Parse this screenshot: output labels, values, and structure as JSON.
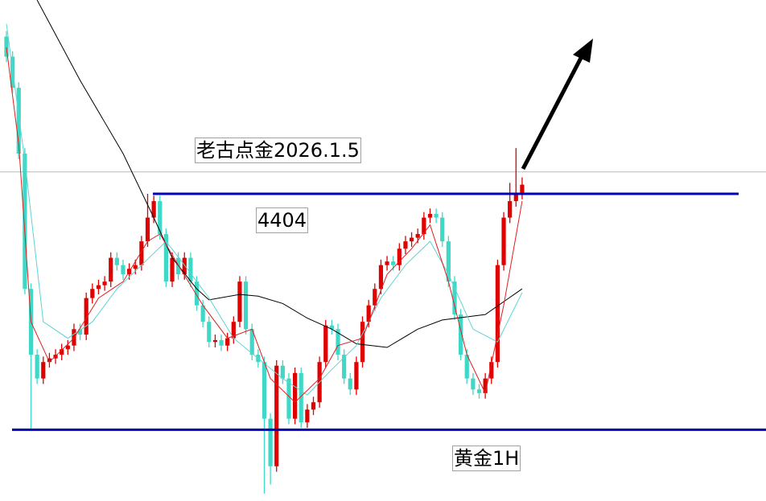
{
  "chart_data": {
    "type": "candlestick",
    "annotations": [
      "老古点金2026.1.5",
      "黄金1H"
    ],
    "up_color": "#e00000",
    "down_color": "#3fd8c6",
    "ylim": [
      4236,
      4510
    ],
    "open": [
      4490,
      4479,
      4462,
      4426,
      4352,
      4316,
      4303,
      4312,
      4314,
      4316,
      4319,
      4321,
      4330,
      4327,
      4347,
      4352,
      4354,
      4356,
      4369,
      4365,
      4360,
      4363,
      4365,
      4378,
      4391,
      4400,
      4382,
      4356,
      4369,
      4360,
      4369,
      4356,
      4343,
      4334,
      4323,
      4324,
      4321,
      4325,
      4334,
      4356,
      4330,
      4316,
      4312,
      4281,
      4255,
      4310,
      4303,
      4281,
      4306,
      4279,
      4286,
      4290,
      4312,
      4332,
      4330,
      4316,
      4303,
      4297,
      4312,
      4334,
      4343,
      4352,
      4365,
      4367,
      4365,
      4374,
      4378,
      4380,
      4382,
      4391,
      4393,
      4391,
      4378,
      4356,
      4338,
      4316,
      4303,
      4297,
      4295,
      4303,
      4312,
      4365,
      4391,
      4400,
      4404
    ],
    "high": [
      4493,
      4482,
      4465,
      4429,
      4355,
      4319,
      4315,
      4317,
      4319,
      4322,
      4324,
      4333,
      4333,
      4350,
      4355,
      4357,
      4359,
      4372,
      4372,
      4368,
      4366,
      4368,
      4381,
      4404,
      4403,
      4403,
      4385,
      4372,
      4372,
      4372,
      4372,
      4359,
      4346,
      4337,
      4327,
      4327,
      4328,
      4337,
      4359,
      4359,
      4333,
      4319,
      4315,
      4284,
      4313,
      4313,
      4306,
      4309,
      4309,
      4289,
      4293,
      4315,
      4335,
      4335,
      4333,
      4319,
      4306,
      4315,
      4337,
      4346,
      4355,
      4368,
      4370,
      4370,
      4377,
      4381,
      4383,
      4385,
      4394,
      4396,
      4396,
      4394,
      4381,
      4359,
      4341,
      4319,
      4306,
      4300,
      4306,
      4315,
      4368,
      4394,
      4410,
      4429,
      4413
    ],
    "low": [
      4476,
      4459,
      4423,
      4349,
      4275,
      4300,
      4300,
      4309,
      4311,
      4313,
      4316,
      4318,
      4324,
      4324,
      4344,
      4349,
      4351,
      4353,
      4362,
      4357,
      4357,
      4360,
      4362,
      4375,
      4388,
      4379,
      4353,
      4353,
      4357,
      4357,
      4353,
      4340,
      4331,
      4320,
      4320,
      4318,
      4318,
      4322,
      4331,
      4327,
      4313,
      4309,
      4240,
      4245,
      4252,
      4300,
      4278,
      4278,
      4276,
      4276,
      4283,
      4287,
      4309,
      4327,
      4313,
      4300,
      4294,
      4294,
      4309,
      4331,
      4340,
      4349,
      4362,
      4362,
      4362,
      4371,
      4375,
      4377,
      4379,
      4388,
      4388,
      4375,
      4353,
      4335,
      4313,
      4300,
      4294,
      4292,
      4292,
      4300,
      4309,
      4362,
      4388,
      4397,
      4401
    ],
    "close": [
      4479,
      4462,
      4426,
      4352,
      4316,
      4303,
      4312,
      4314,
      4316,
      4319,
      4321,
      4330,
      4327,
      4347,
      4352,
      4354,
      4356,
      4369,
      4365,
      4360,
      4363,
      4365,
      4378,
      4391,
      4400,
      4382,
      4356,
      4369,
      4360,
      4369,
      4356,
      4343,
      4334,
      4323,
      4324,
      4321,
      4325,
      4334,
      4356,
      4330,
      4316,
      4312,
      4281,
      4255,
      4310,
      4303,
      4281,
      4306,
      4279,
      4286,
      4290,
      4312,
      4332,
      4330,
      4316,
      4303,
      4297,
      4312,
      4334,
      4343,
      4352,
      4365,
      4367,
      4365,
      4374,
      4378,
      4380,
      4382,
      4391,
      4393,
      4391,
      4378,
      4356,
      4338,
      4316,
      4303,
      4297,
      4295,
      4303,
      4312,
      4365,
      4391,
      4400,
      4404,
      4409
    ],
    "lines": [
      {
        "color": "#000000",
        "x": [
          5,
          12,
          19,
          24,
          27,
          31,
          33,
          38,
          41,
          45,
          49,
          53,
          57,
          62,
          67,
          71,
          78,
          84
        ],
        "values": [
          4510,
          4466,
          4426,
          4391,
          4369,
          4352,
          4346,
          4349,
          4348,
          4344,
          4336,
          4330,
          4322,
          4320,
          4330,
          4335,
          4338,
          4352
        ]
      },
      {
        "color": "#5fd3d3",
        "x": [
          0,
          3,
          6,
          10,
          14,
          18,
          22,
          26,
          29,
          33,
          37,
          41,
          45,
          49,
          53,
          57,
          61,
          65,
          69,
          72,
          76,
          80,
          84
        ],
        "values": [
          4497,
          4422,
          4334,
          4325,
          4334,
          4352,
          4365,
          4378,
          4365,
          4347,
          4325,
          4314,
          4303,
          4294,
          4308,
          4321,
          4347,
          4365,
          4378,
          4360,
          4330,
          4323,
          4350
        ]
      },
      {
        "color": "#e02020",
        "x": [
          0,
          2,
          4,
          7,
          11,
          15,
          19,
          23,
          25,
          28,
          32,
          36,
          40,
          43,
          47,
          51,
          54,
          58,
          62,
          66,
          69,
          72,
          75,
          78,
          81,
          84
        ],
        "values": [
          4484,
          4431,
          4334,
          4312,
          4325,
          4347,
          4356,
          4378,
          4382,
          4365,
          4343,
          4325,
          4330,
          4303,
          4290,
          4303,
          4321,
          4325,
          4360,
          4374,
          4387,
          4356,
          4316,
          4295,
          4343,
          4400
        ]
      }
    ],
    "price_line": {
      "value": 4416,
      "color": "#b8b8b8"
    },
    "levels": [
      {
        "value": 4404,
        "color": "#0000b8",
        "show_label": true
      },
      {
        "value": 4275,
        "color": "#0000b8",
        "show_label": false
      }
    ]
  }
}
